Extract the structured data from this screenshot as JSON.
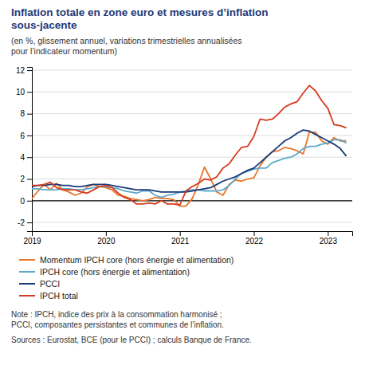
{
  "chart_data": {
    "type": "line",
    "title": "Inflation totale en zone euro et mesures d’inflation\nsous-jacente",
    "subtitle": "(en %, glissement annuel, variations trimestrielles annualisées\npour l’indicateur momentum)",
    "annotations": [
      "Note : IPCH, indice des prix à la consommation harmonisé ;\nPCCI, composantes persistantes et communes de l’inflation.",
      "Sources : Eurostat, BCE (pour le PCCI) ; calculs Banque de France."
    ],
    "x": [
      2019.0,
      2019.083,
      2019.167,
      2019.25,
      2019.333,
      2019.417,
      2019.5,
      2019.583,
      2019.667,
      2019.75,
      2019.833,
      2019.917,
      2020.0,
      2020.083,
      2020.167,
      2020.25,
      2020.333,
      2020.417,
      2020.5,
      2020.583,
      2020.667,
      2020.75,
      2020.833,
      2020.917,
      2021.0,
      2021.083,
      2021.167,
      2021.25,
      2021.333,
      2021.417,
      2021.5,
      2021.583,
      2021.667,
      2021.75,
      2021.833,
      2021.917,
      2022.0,
      2022.083,
      2022.167,
      2022.25,
      2022.333,
      2022.417,
      2022.5,
      2022.583,
      2022.667,
      2022.75,
      2022.833,
      2022.917,
      2023.0,
      2023.083,
      2023.167,
      2023.25
    ],
    "xlim": [
      2019.0,
      2023.33
    ],
    "xticks": [
      2019,
      2020,
      2021,
      2022,
      2023
    ],
    "ylim": [
      -2.8,
      12.3
    ],
    "yticks": [
      -2,
      0,
      2,
      4,
      6,
      8,
      10,
      12
    ],
    "grid": true,
    "legend": "bottom",
    "series": [
      {
        "name": "Momentum IPCH core (hors énergie et alimentation)",
        "color": "#e8762a",
        "values": [
          0.2,
          0.9,
          1.5,
          1.0,
          1.6,
          1.0,
          0.8,
          0.5,
          0.7,
          1.3,
          1.5,
          1.3,
          1.2,
          1.0,
          0.5,
          0.4,
          0.2,
          0.1,
          0.0,
          0.1,
          0.3,
          0.2,
          0.2,
          0.1,
          -0.5,
          -0.5,
          0.2,
          1.5,
          3.1,
          2.0,
          0.8,
          0.5,
          1.5,
          1.9,
          1.8,
          2.0,
          2.1,
          3.2,
          4.0,
          4.5,
          4.6,
          4.9,
          4.8,
          4.6,
          4.3,
          6.3,
          6.3,
          5.5,
          5.2,
          5.8,
          5.5,
          5.5
        ]
      },
      {
        "name": "IPCH core (hors énergie et alimentation)",
        "color": "#5daacc",
        "values": [
          1.1,
          1.1,
          1.0,
          1.0,
          1.0,
          1.1,
          1.1,
          1.0,
          1.0,
          1.1,
          1.2,
          1.3,
          1.3,
          1.2,
          1.1,
          0.9,
          0.8,
          0.7,
          0.9,
          0.9,
          0.5,
          0.3,
          0.5,
          0.6,
          0.8,
          0.9,
          1.0,
          1.0,
          0.9,
          0.9,
          0.9,
          1.0,
          1.4,
          2.0,
          2.5,
          2.7,
          2.9,
          3.0,
          3.0,
          3.5,
          3.7,
          3.9,
          4.0,
          4.3,
          4.8,
          5.0,
          5.0,
          5.2,
          5.3,
          5.6,
          5.6,
          5.3
        ]
      },
      {
        "name": "PCCI",
        "color": "#1a3a7a",
        "values": [
          1.3,
          1.4,
          1.4,
          1.5,
          1.5,
          1.4,
          1.4,
          1.3,
          1.3,
          1.4,
          1.5,
          1.5,
          1.5,
          1.4,
          1.3,
          1.2,
          1.1,
          1.0,
          1.0,
          1.0,
          0.9,
          0.8,
          0.8,
          0.8,
          0.8,
          0.8,
          0.9,
          1.0,
          1.1,
          1.2,
          1.5,
          1.8,
          2.0,
          2.2,
          2.5,
          2.8,
          3.0,
          3.5,
          4.0,
          4.5,
          5.0,
          5.5,
          5.8,
          6.2,
          6.5,
          6.4,
          6.1,
          5.8,
          5.5,
          5.2,
          4.8,
          4.1
        ]
      },
      {
        "name": "IPCH total",
        "color": "#d63b1f",
        "values": [
          1.4,
          1.4,
          1.5,
          1.7,
          1.2,
          1.0,
          1.0,
          1.0,
          0.8,
          0.7,
          1.0,
          1.3,
          1.4,
          1.2,
          0.7,
          0.3,
          0.1,
          -0.3,
          -0.3,
          -0.2,
          -0.3,
          0.0,
          -0.3,
          -0.3,
          -0.4,
          0.9,
          1.3,
          1.6,
          2.0,
          1.9,
          2.2,
          3.0,
          3.4,
          4.2,
          4.9,
          5.0,
          5.9,
          7.5,
          7.4,
          7.5,
          8.0,
          8.6,
          8.9,
          9.1,
          9.9,
          10.6,
          10.1,
          9.2,
          8.5,
          7.0,
          6.9,
          6.7
        ]
      }
    ]
  }
}
